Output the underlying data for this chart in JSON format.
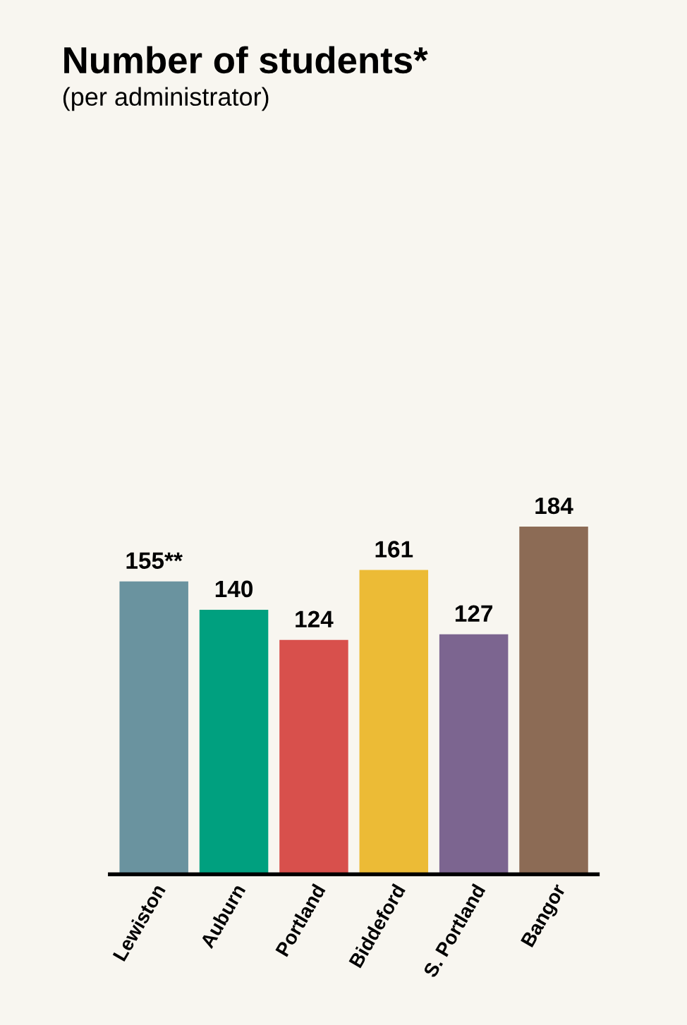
{
  "chart_data": {
    "type": "bar",
    "title": "Number of students*",
    "subtitle": "(per administrator)",
    "categories": [
      "Lewiston",
      "Auburn",
      "Portland",
      "Biddeford",
      "S. Portland",
      "Bangor"
    ],
    "values": [
      155,
      140,
      124,
      161,
      127,
      184
    ],
    "colors": [
      "#6a939f",
      "#00a07f",
      "#d8504c",
      "#ecbb36",
      "#7c6590",
      "#8c6b55"
    ],
    "value_labels": [
      "155**",
      "140",
      "124",
      "161",
      "127",
      "184"
    ],
    "grid": false,
    "legend": false
  }
}
